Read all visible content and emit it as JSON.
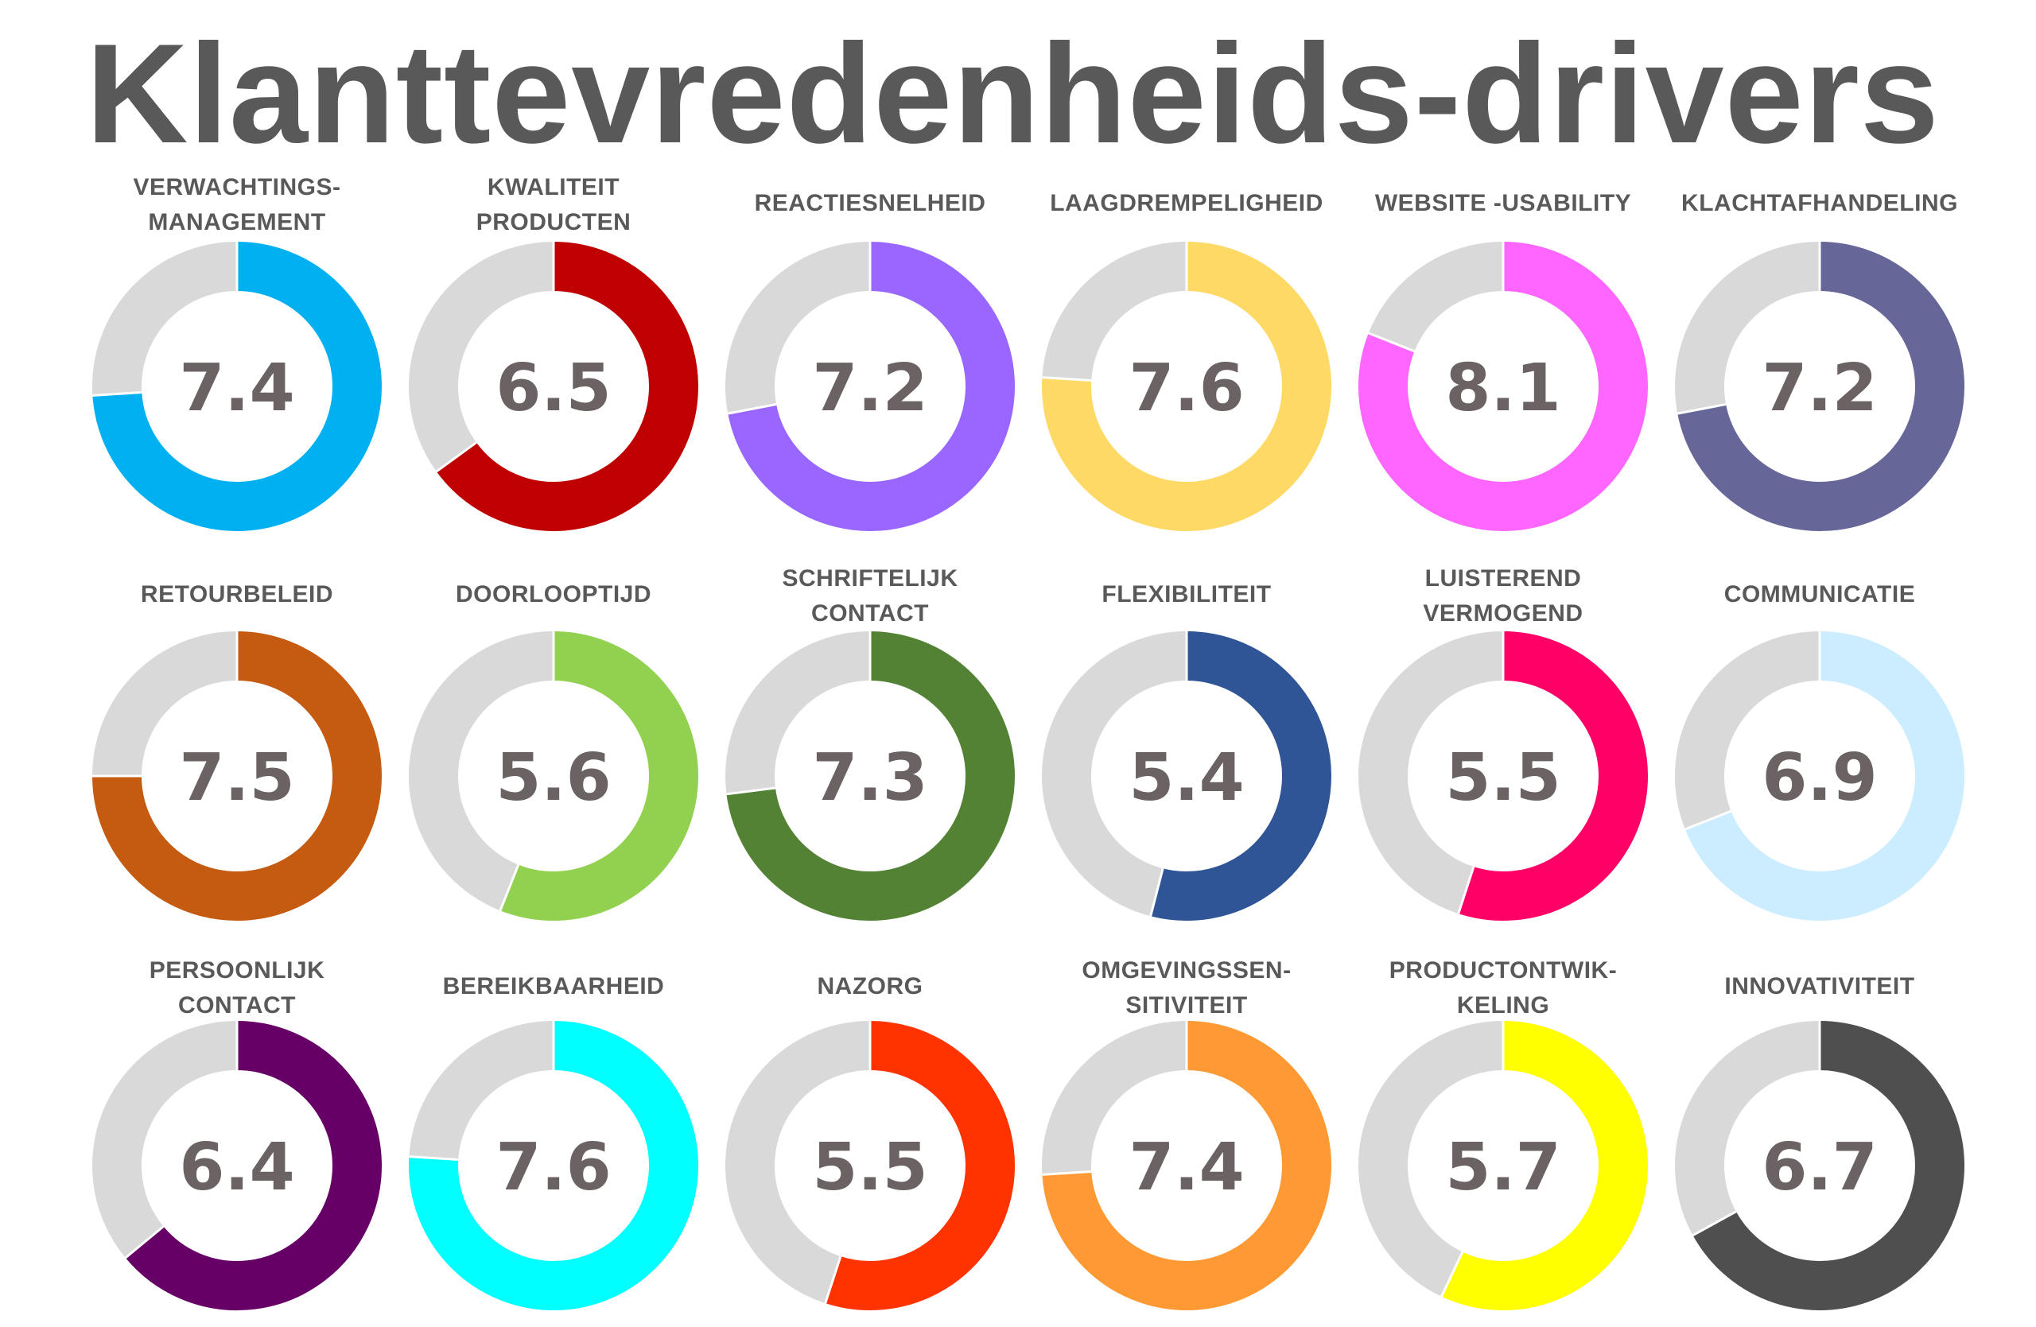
{
  "title": "Klanttevredenheids-drivers",
  "scale_max": 10,
  "chart_data": {
    "type": "donut",
    "title": "Klanttevredenheids-drivers",
    "scale": [
      0,
      10
    ],
    "remainder_color": "#D9D9D9",
    "items": [
      {
        "label": [
          "VERWACHTINGS-",
          "MANAGEMENT"
        ],
        "value": 7.4,
        "display": "7.4",
        "color": "#00B0F0"
      },
      {
        "label": [
          "KWALITEIT",
          "PRODUCTEN"
        ],
        "value": 6.5,
        "display": "6.5",
        "color": "#C00000"
      },
      {
        "label": [
          "REACTIESNELHEID"
        ],
        "value": 7.2,
        "display": "7.2",
        "color": "#9966FF"
      },
      {
        "label": [
          "LAAGDREMPELIGHEID"
        ],
        "value": 7.6,
        "display": "7.6",
        "color": "#FFD966"
      },
      {
        "label": [
          "WEBSITE -USABILITY"
        ],
        "value": 8.1,
        "display": "8.1",
        "color": "#FF66FF"
      },
      {
        "label": [
          "KLACHTAFHANDELING"
        ],
        "value": 7.2,
        "display": "7.2",
        "color": "#666699"
      },
      {
        "label": [
          "RETOURBELEID"
        ],
        "value": 7.5,
        "display": "7.5",
        "color": "#C55A11"
      },
      {
        "label": [
          "DOORLOOPTIJD"
        ],
        "value": 5.6,
        "display": "5.6",
        "color": "#92D050"
      },
      {
        "label": [
          "SCHRIFTELIJK",
          "CONTACT"
        ],
        "value": 7.3,
        "display": "7.3",
        "color": "#548235"
      },
      {
        "label": [
          "FLEXIBILITEIT"
        ],
        "value": 5.4,
        "display": "5.4",
        "color": "#2F5597"
      },
      {
        "label": [
          "LUISTEREND",
          "VERMOGEND"
        ],
        "value": 5.5,
        "display": "5.5",
        "color": "#FF0066"
      },
      {
        "label": [
          "COMMUNICATIE"
        ],
        "value": 6.9,
        "display": "6.9",
        "color": "#CCECFF"
      },
      {
        "label": [
          "PERSOONLIJK",
          "CONTACT"
        ],
        "value": 6.4,
        "display": "6.4",
        "color": "#660066"
      },
      {
        "label": [
          "BEREIKBAARHEID"
        ],
        "value": 7.6,
        "display": "7.6",
        "color": "#00FFFF"
      },
      {
        "label": [
          "NAZORG"
        ],
        "value": 5.5,
        "display": "5.5",
        "color": "#FF3300"
      },
      {
        "label": [
          "OMGEVINGSSEN-",
          "SITIVITEIT"
        ],
        "value": 7.4,
        "display": "7.4",
        "color": "#FF9933"
      },
      {
        "label": [
          "PRODUCTONTWIK-",
          "KELING"
        ],
        "value": 5.7,
        "display": "5.7",
        "color": "#FFFF00"
      },
      {
        "label": [
          "INNOVATIVITEIT"
        ],
        "value": 6.7,
        "display": "6.7",
        "color": "#4F4F4F"
      }
    ]
  }
}
